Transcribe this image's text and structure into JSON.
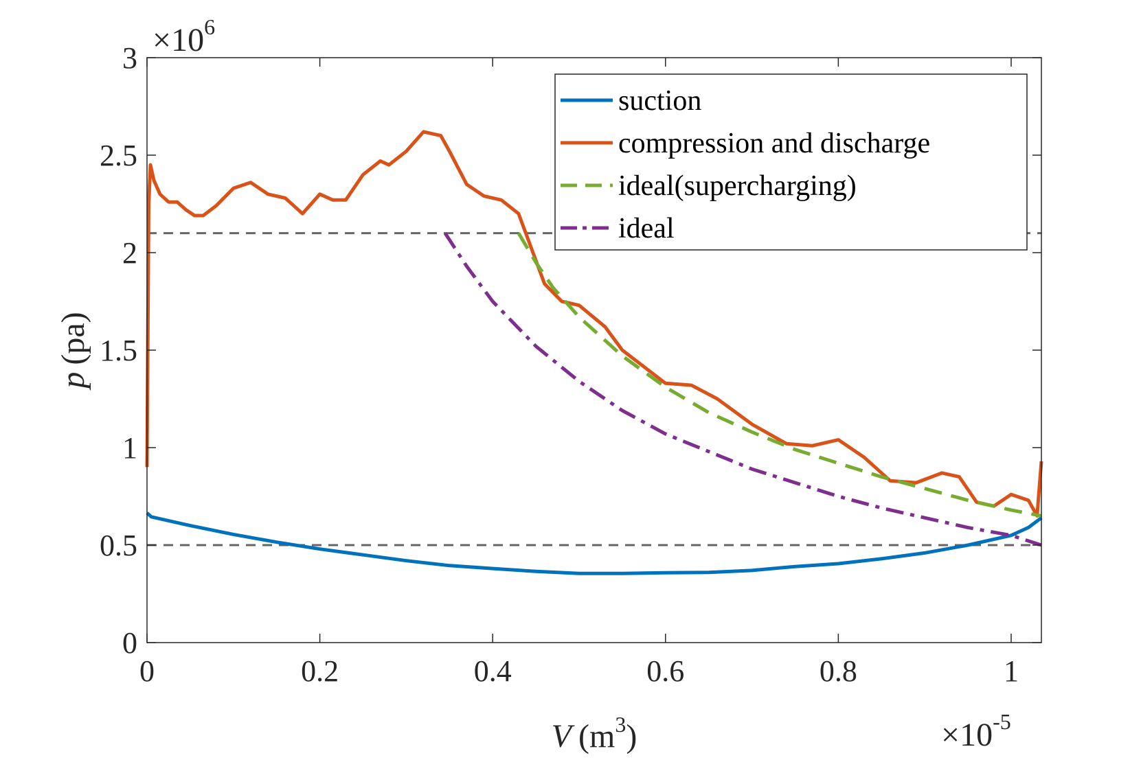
{
  "chart_data": {
    "type": "line",
    "title": "",
    "xlabel_var": "V",
    "xlabel_unit": "(m",
    "xlabel_unit_exp": "3",
    "xlabel_close": ")",
    "ylabel_var": "p",
    "ylabel_unit": "(pa)",
    "x_multiplier_base": "×10",
    "x_multiplier_exp": "-5",
    "y_multiplier_base": "×10",
    "y_multiplier_exp": "6",
    "xlim": [
      0,
      1.035
    ],
    "ylim": [
      0,
      3
    ],
    "xticks": [
      0,
      0.2,
      0.4,
      0.6,
      0.8,
      1
    ],
    "xtick_labels": [
      "0",
      "0.2",
      "0.4",
      "0.6",
      "0.8",
      "1"
    ],
    "yticks": [
      0,
      0.5,
      1,
      1.5,
      2,
      2.5,
      3
    ],
    "ytick_labels": [
      "0",
      "0.5",
      "1",
      "1.5",
      "2",
      "2.5",
      "3"
    ],
    "legend_position": "top-right",
    "reference_lines": [
      {
        "y": 2.1,
        "color": "#666666",
        "style": "dashed"
      },
      {
        "y": 0.5,
        "color": "#666666",
        "style": "dashed"
      }
    ],
    "series": [
      {
        "name": "suction",
        "color": "#0072BD",
        "style": "solid",
        "x": [
          0,
          0.005,
          0.05,
          0.1,
          0.15,
          0.2,
          0.25,
          0.3,
          0.35,
          0.4,
          0.45,
          0.5,
          0.55,
          0.6,
          0.65,
          0.7,
          0.75,
          0.8,
          0.85,
          0.9,
          0.95,
          1.0,
          1.02,
          1.035
        ],
        "y": [
          0.665,
          0.645,
          0.6,
          0.555,
          0.515,
          0.48,
          0.45,
          0.42,
          0.395,
          0.38,
          0.365,
          0.355,
          0.355,
          0.358,
          0.36,
          0.37,
          0.39,
          0.405,
          0.43,
          0.46,
          0.5,
          0.55,
          0.59,
          0.64
        ]
      },
      {
        "name": "compression and discharge",
        "color": "#D95319",
        "style": "solid",
        "x": [
          0,
          0.002,
          0.004,
          0.008,
          0.015,
          0.025,
          0.035,
          0.045,
          0.055,
          0.065,
          0.08,
          0.1,
          0.12,
          0.14,
          0.16,
          0.18,
          0.2,
          0.215,
          0.23,
          0.25,
          0.27,
          0.28,
          0.3,
          0.32,
          0.34,
          0.35,
          0.37,
          0.39,
          0.41,
          0.43,
          0.44,
          0.46,
          0.48,
          0.5,
          0.53,
          0.55,
          0.6,
          0.63,
          0.66,
          0.7,
          0.74,
          0.77,
          0.8,
          0.83,
          0.86,
          0.89,
          0.92,
          0.94,
          0.96,
          0.98,
          1.0,
          1.02,
          1.03,
          1.035
        ],
        "y": [
          0.9,
          2.25,
          2.45,
          2.37,
          2.3,
          2.26,
          2.26,
          2.22,
          2.19,
          2.19,
          2.24,
          2.33,
          2.36,
          2.3,
          2.28,
          2.2,
          2.3,
          2.27,
          2.27,
          2.4,
          2.47,
          2.45,
          2.52,
          2.62,
          2.6,
          2.52,
          2.35,
          2.29,
          2.27,
          2.2,
          2.08,
          1.84,
          1.75,
          1.73,
          1.62,
          1.5,
          1.33,
          1.32,
          1.25,
          1.12,
          1.02,
          1.01,
          1.04,
          0.95,
          0.83,
          0.82,
          0.87,
          0.85,
          0.72,
          0.7,
          0.76,
          0.73,
          0.65,
          0.93
        ]
      },
      {
        "name": "ideal(supercharging)",
        "color": "#77AC30",
        "style": "dashed",
        "x": [
          0.43,
          0.45,
          0.47,
          0.5,
          0.55,
          0.6,
          0.65,
          0.7,
          0.75,
          0.8,
          0.85,
          0.9,
          0.95,
          1.0,
          1.035
        ],
        "y": [
          2.1,
          1.95,
          1.82,
          1.67,
          1.47,
          1.31,
          1.18,
          1.08,
          0.99,
          0.92,
          0.85,
          0.79,
          0.73,
          0.68,
          0.65
        ]
      },
      {
        "name": "ideal",
        "color": "#7E2F8E",
        "style": "dashdot",
        "x": [
          0.345,
          0.37,
          0.4,
          0.45,
          0.5,
          0.55,
          0.6,
          0.65,
          0.7,
          0.75,
          0.8,
          0.85,
          0.9,
          0.95,
          1.0,
          1.035
        ],
        "y": [
          2.1,
          1.93,
          1.75,
          1.52,
          1.34,
          1.19,
          1.07,
          0.98,
          0.89,
          0.82,
          0.75,
          0.69,
          0.64,
          0.59,
          0.55,
          0.5
        ]
      }
    ]
  }
}
